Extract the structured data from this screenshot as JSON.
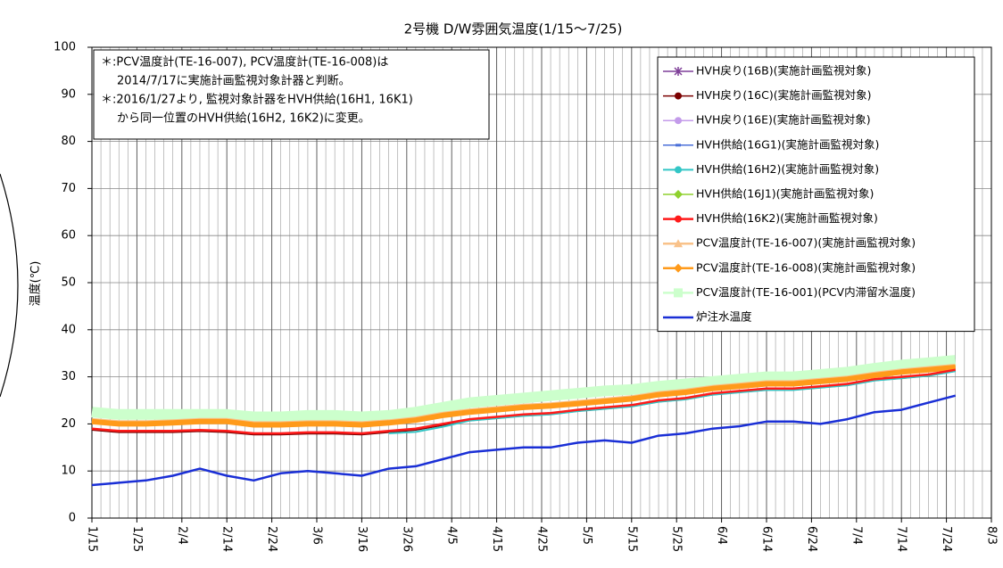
{
  "chart_data": {
    "type": "line",
    "title": "2号機 D/W雰囲気温度(1/15～7/25)",
    "y_label": "温度(℃)",
    "annotations": [
      "＊:PCV温度計(TE-16-007), PCV温度計(TE-16-008)は",
      "2014/7/17に実施計画監視対象計器と判断。",
      "＊:2016/1/27より, 監視対象計器をHVH供給(16H1, 16K1)",
      "から同一位置のHVH供給(16H2, 16K2)に変更。"
    ],
    "xlim": [
      0,
      200
    ],
    "xticks": [
      {
        "value": 0,
        "label": "1/15"
      },
      {
        "value": 10,
        "label": "1/25"
      },
      {
        "value": 20,
        "label": "2/4"
      },
      {
        "value": 30,
        "label": "2/14"
      },
      {
        "value": 40,
        "label": "2/24"
      },
      {
        "value": 50,
        "label": "3/6"
      },
      {
        "value": 60,
        "label": "3/16"
      },
      {
        "value": 70,
        "label": "3/26"
      },
      {
        "value": 80,
        "label": "4/5"
      },
      {
        "value": 90,
        "label": "4/15"
      },
      {
        "value": 100,
        "label": "4/25"
      },
      {
        "value": 110,
        "label": "5/5"
      },
      {
        "value": 120,
        "label": "5/15"
      },
      {
        "value": 130,
        "label": "5/25"
      },
      {
        "value": 140,
        "label": "6/4"
      },
      {
        "value": 150,
        "label": "6/14"
      },
      {
        "value": 160,
        "label": "6/24"
      },
      {
        "value": 170,
        "label": "7/4"
      },
      {
        "value": 180,
        "label": "7/14"
      },
      {
        "value": 190,
        "label": "7/24"
      },
      {
        "value": 200,
        "label": "8/3"
      }
    ],
    "ylim": [
      0,
      100
    ],
    "yticks": [
      0,
      10,
      20,
      30,
      40,
      50,
      60,
      70,
      80,
      90,
      100
    ],
    "grid": true,
    "legend": "upper right",
    "x": [
      0,
      6,
      12,
      18,
      24,
      30,
      36,
      42,
      48,
      54,
      60,
      66,
      72,
      78,
      84,
      90,
      96,
      102,
      108,
      114,
      120,
      126,
      132,
      138,
      144,
      150,
      156,
      162,
      168,
      174,
      180,
      186,
      192
    ],
    "series": [
      {
        "name": "HVH戻り(16B)(実施計画監視対象)",
        "color": "#7f3f98",
        "marker": "x",
        "width": 1.5,
        "values": [
          19,
          18.5,
          18.5,
          18.5,
          18.7,
          18.5,
          18,
          18,
          18.2,
          18.2,
          18,
          18.5,
          19,
          20,
          21,
          21.5,
          22,
          22.3,
          23,
          23.5,
          24,
          25,
          25.5,
          26.5,
          27,
          27.5,
          27.5,
          28,
          28.5,
          29.5,
          30,
          30.5,
          31.5
        ]
      },
      {
        "name": "HVH戻り(16C)(実施計画監視対象)",
        "color": "#7b0000",
        "marker": "circle",
        "width": 1.5,
        "values": [
          18.7,
          18.2,
          18.2,
          18.2,
          18.4,
          18.2,
          17.7,
          17.7,
          17.9,
          17.9,
          17.7,
          18.2,
          18.7,
          19.7,
          20.7,
          21.2,
          21.7,
          22,
          22.7,
          23.2,
          23.7,
          24.7,
          25.2,
          26.2,
          26.7,
          27.2,
          27.2,
          27.7,
          28.2,
          29.2,
          29.7,
          30.2,
          31.2
        ]
      },
      {
        "name": "HVH戻り(16E)(実施計画監視対象)",
        "color": "#c39bea",
        "marker": "circle",
        "width": 1.5,
        "values": [
          19,
          18.5,
          18.5,
          18.5,
          18.7,
          18.5,
          18,
          18,
          18.2,
          18.2,
          18,
          18.5,
          19,
          20,
          21,
          21.5,
          22,
          22.3,
          23,
          23.5,
          24,
          25,
          25.5,
          26.5,
          27,
          27.5,
          27.5,
          28,
          28.5,
          29.5,
          30,
          30.5,
          31.5
        ]
      },
      {
        "name": "HVH供給(16G1)(実施計画監視対象)",
        "color": "#4a6fd8",
        "marker": "dash",
        "width": 1.5,
        "values": [
          19,
          18.5,
          18.5,
          18.5,
          18.7,
          18.5,
          18,
          18,
          18.2,
          18.2,
          18,
          18.5,
          19,
          20,
          21,
          21.5,
          22,
          22.3,
          23,
          23.5,
          24,
          25,
          25.5,
          26.5,
          27,
          27.5,
          27.5,
          28,
          28.5,
          29.5,
          30,
          30.5,
          31.5
        ]
      },
      {
        "name": "HVH供給(16H2)(実施計画監視対象)",
        "color": "#33c6c6",
        "marker": "circle",
        "width": 2,
        "values": [
          null,
          null,
          null,
          null,
          null,
          null,
          null,
          null,
          null,
          null,
          null,
          18,
          18.3,
          19.4,
          20.7,
          21.2,
          21.7,
          22,
          22.7,
          23.2,
          23.7,
          24.7,
          25.2,
          26.2,
          26.7,
          27.2,
          27.2,
          27.7,
          28.2,
          29.2,
          29.7,
          30.2,
          31.2
        ]
      },
      {
        "name": "HVH供給(16J1)(実施計画監視対象)",
        "color": "#8fd12f",
        "marker": "diamond",
        "width": 1.5,
        "values": [
          19,
          18.5,
          18.5,
          18.5,
          18.7,
          18.5,
          18,
          18,
          18.2,
          18.2,
          18,
          18.5,
          19,
          20,
          21,
          21.5,
          22,
          22.3,
          23,
          23.5,
          24,
          25,
          25.5,
          26.5,
          27,
          27.5,
          27.5,
          28,
          28.5,
          29.5,
          30,
          30.5,
          31.5
        ]
      },
      {
        "name": "HVH供給(16K2)(実施計画監視対象)",
        "color": "#ff1a1a",
        "marker": "circle",
        "width": 2.5,
        "values": [
          19,
          18.5,
          18.5,
          18.5,
          18.7,
          18.5,
          18,
          18,
          18.2,
          18.2,
          18,
          18.5,
          19,
          20,
          21,
          21.5,
          22,
          22.3,
          23,
          23.5,
          24,
          25,
          25.5,
          26.5,
          27,
          27.5,
          27.5,
          28,
          28.5,
          29.5,
          30,
          30.5,
          31.5
        ]
      },
      {
        "name": "PCV温度計(TE-16-007)(実施計画監視対象)",
        "color": "#f9c28a",
        "marker": "triangle",
        "width": 5,
        "values": [
          20.8,
          20.3,
          20.3,
          20.5,
          20.8,
          20.8,
          20.1,
          20.1,
          20.3,
          20.3,
          20.1,
          20.5,
          21.1,
          22.1,
          22.8,
          23.3,
          23.8,
          24.1,
          24.6,
          25.1,
          25.6,
          26.5,
          27,
          27.8,
          28.3,
          28.8,
          28.8,
          29.3,
          29.8,
          30.6,
          31.3,
          31.8,
          32.3
        ]
      },
      {
        "name": "PCV温度計(TE-16-008)(実施計画監視対象)",
        "color": "#ff9a1a",
        "marker": "diamond",
        "width": 6,
        "values": [
          20.5,
          20,
          20,
          20.2,
          20.5,
          20.5,
          19.8,
          19.8,
          20,
          20,
          19.8,
          20.2,
          20.8,
          21.8,
          22.5,
          23,
          23.5,
          23.8,
          24.3,
          24.8,
          25.3,
          26.2,
          26.7,
          27.5,
          28,
          28.5,
          28.5,
          29,
          29.5,
          30.3,
          31,
          31.5,
          32
        ]
      },
      {
        "name": "PCV温度計(TE-16-001)(PCV内滞留水温度)",
        "color": "#ccffcc",
        "marker": "square",
        "width": 12,
        "values": [
          22.5,
          22,
          22,
          22,
          22,
          22,
          21.5,
          21.5,
          21.8,
          21.8,
          21.5,
          21.8,
          22.5,
          23.5,
          24.5,
          25,
          25.5,
          26,
          26.5,
          27,
          27.3,
          28,
          28.5,
          29,
          29.5,
          30,
          30,
          30.5,
          31,
          31.8,
          32.5,
          33,
          33.5
        ]
      },
      {
        "name": "炉注水温度",
        "color": "#1a2fd6",
        "marker": "none",
        "width": 2.5,
        "values": [
          7,
          7.5,
          8,
          9,
          10.5,
          9,
          8,
          9.5,
          10,
          9.5,
          9,
          10.5,
          11,
          12.5,
          14,
          14.5,
          15,
          15,
          16,
          16.5,
          16,
          17.5,
          18,
          19,
          19.5,
          20.5,
          20.5,
          20,
          21,
          22.5,
          23,
          24.5,
          26
        ]
      }
    ]
  }
}
